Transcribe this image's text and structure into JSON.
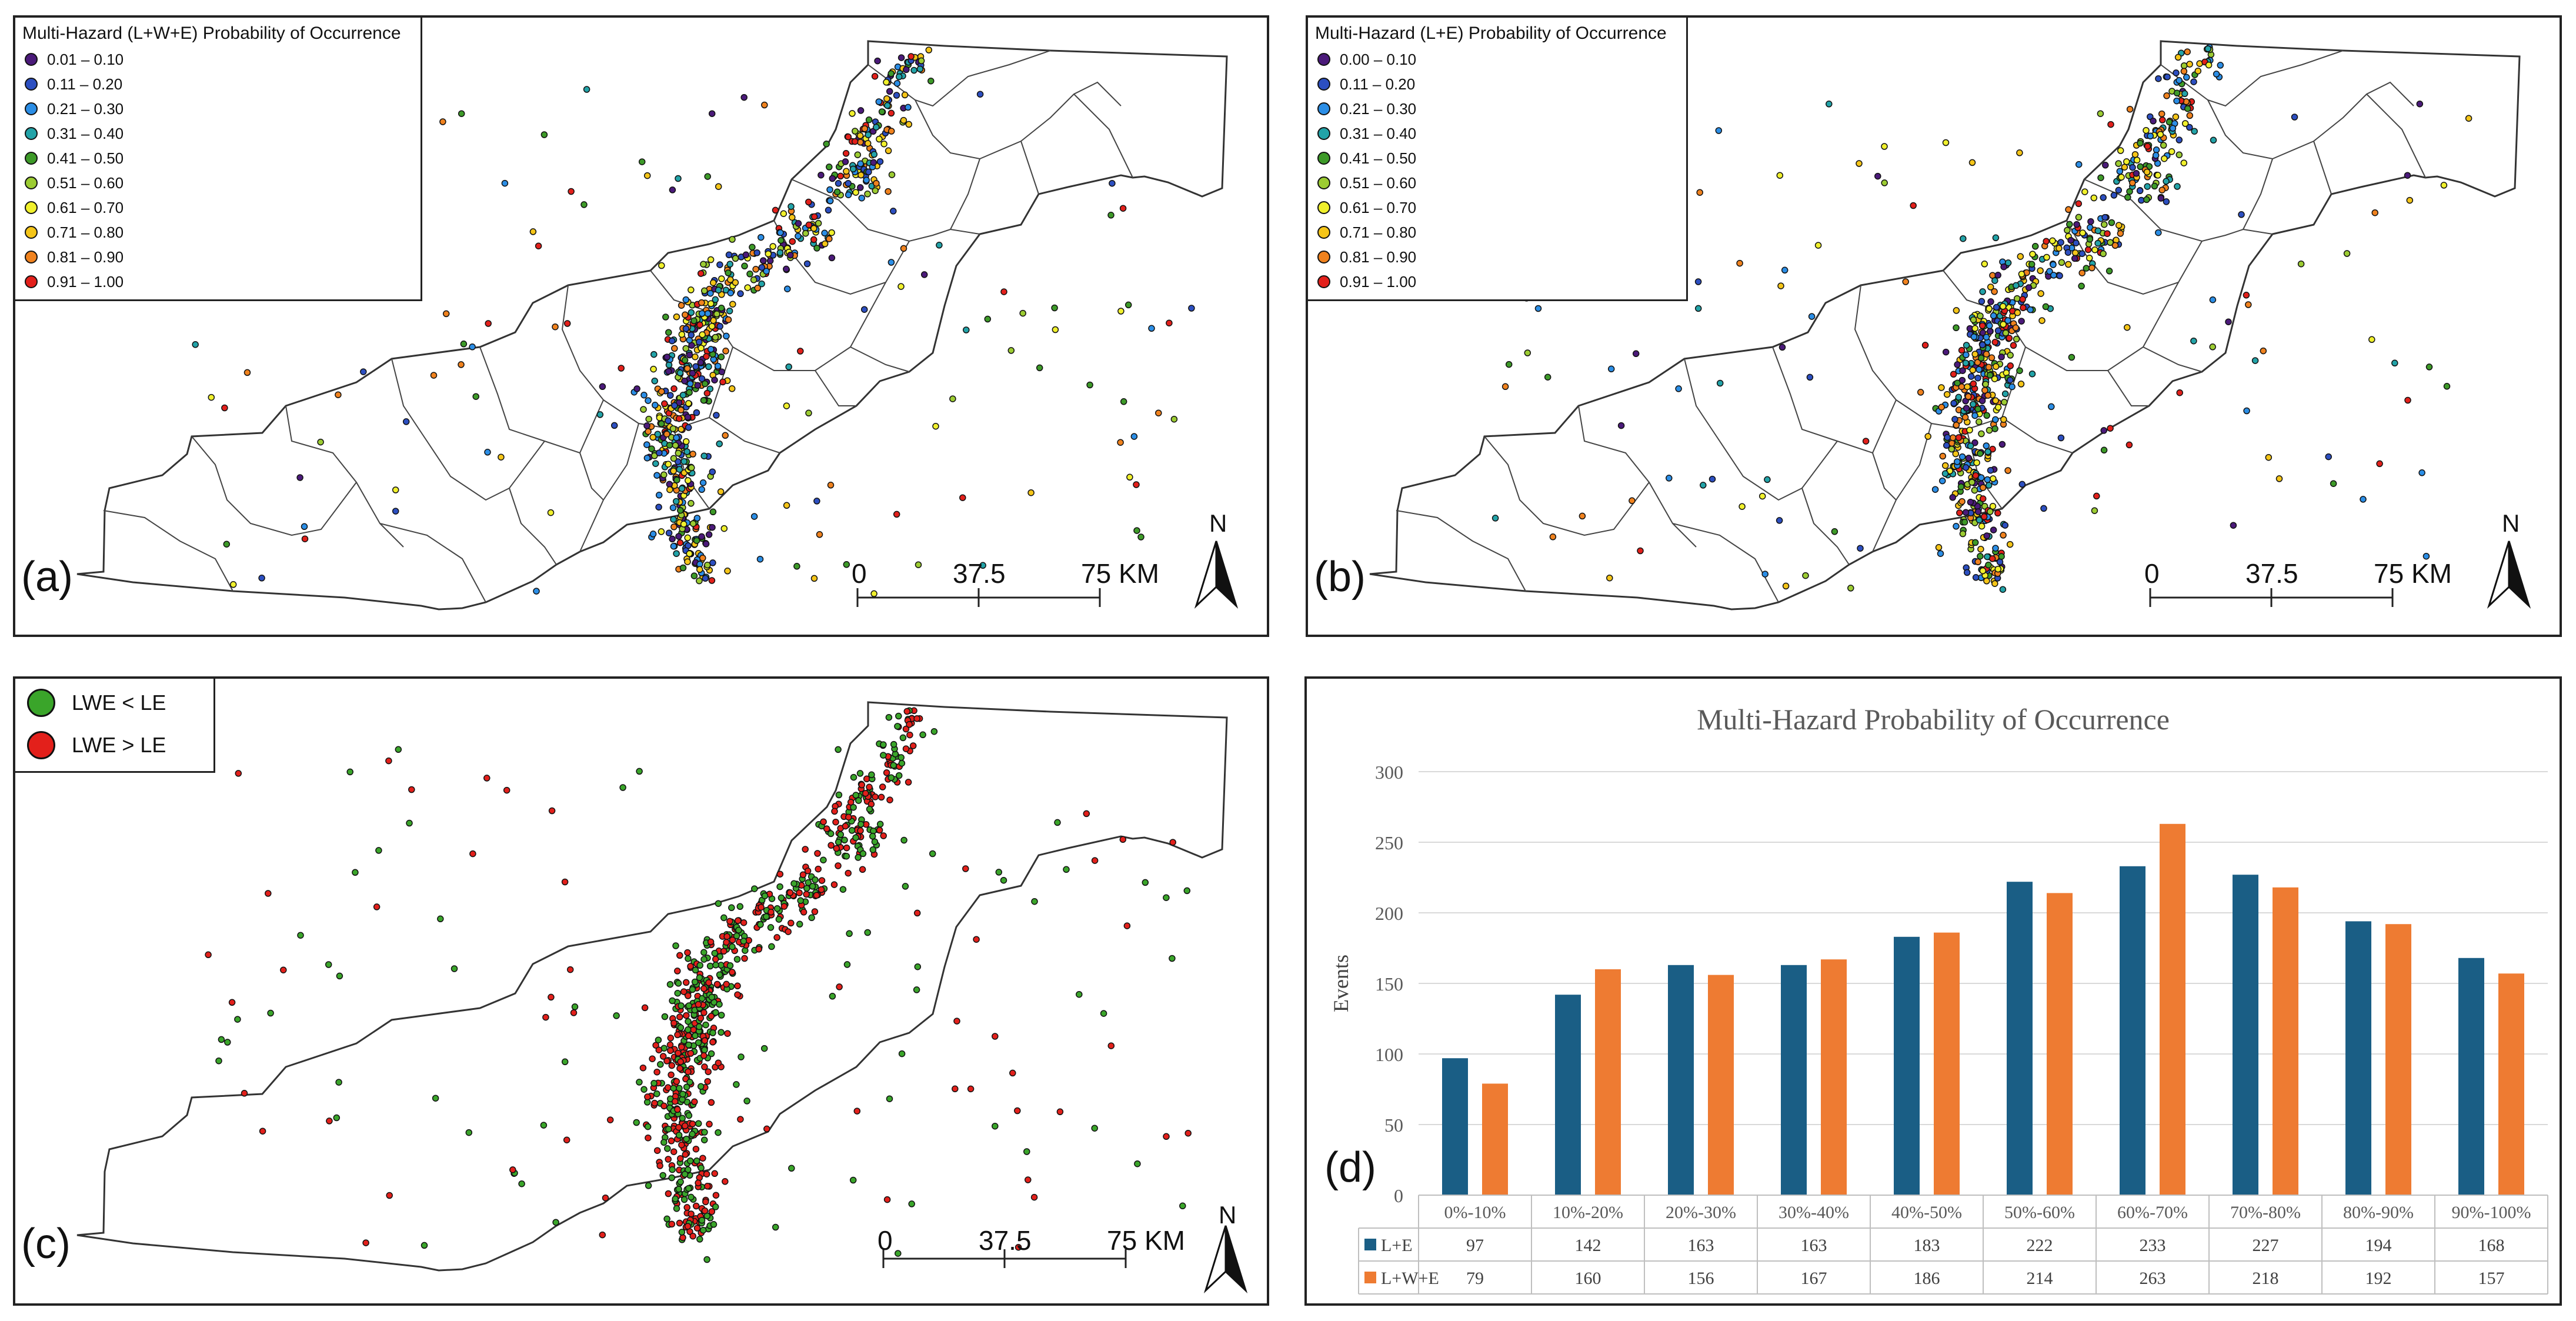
{
  "panel_a": {
    "label": "(a)",
    "legend_title": "Multi-Hazard (L+W+E) Probability of Occurrence",
    "classes": [
      {
        "range": "0.01 – 0.10",
        "color": "#4b1a7a"
      },
      {
        "range": "0.11 – 0.20",
        "color": "#2c4fc1"
      },
      {
        "range": "0.21 – 0.30",
        "color": "#2b8ee6"
      },
      {
        "range": "0.31 – 0.40",
        "color": "#22a3a8"
      },
      {
        "range": "0.41 – 0.50",
        "color": "#3d9a28"
      },
      {
        "range": "0.51 – 0.60",
        "color": "#9ccc32"
      },
      {
        "range": "0.61 – 0.70",
        "color": "#f0f02c"
      },
      {
        "range": "0.71 – 0.80",
        "color": "#f5c518"
      },
      {
        "range": "0.81 – 0.90",
        "color": "#f0821e"
      },
      {
        "range": "0.91 – 1.00",
        "color": "#e3201b"
      }
    ],
    "scale": {
      "zero": "0",
      "mid": "37.5",
      "end": "75 KM"
    },
    "north": "N"
  },
  "panel_b": {
    "label": "(b)",
    "legend_title": "Multi-Hazard (L+E) Probability of Occurrence",
    "classes": [
      {
        "range": "0.00 – 0.10",
        "color": "#4b1a7a"
      },
      {
        "range": "0.11 – 0.20",
        "color": "#2c4fc1"
      },
      {
        "range": "0.21 – 0.30",
        "color": "#2b8ee6"
      },
      {
        "range": "0.31 – 0.40",
        "color": "#22a3a8"
      },
      {
        "range": "0.41 – 0.50",
        "color": "#3d9a28"
      },
      {
        "range": "0.51 – 0.60",
        "color": "#9ccc32"
      },
      {
        "range": "0.61 – 0.70",
        "color": "#f0f02c"
      },
      {
        "range": "0.71 – 0.80",
        "color": "#f5c518"
      },
      {
        "range": "0.81 – 0.90",
        "color": "#f0821e"
      },
      {
        "range": "0.91 – 1.00",
        "color": "#e3201b"
      }
    ],
    "scale": {
      "zero": "0",
      "mid": "37.5",
      "end": "75 KM"
    },
    "north": "N"
  },
  "panel_c": {
    "label": "(c)",
    "legend": [
      {
        "label": "LWE < LE",
        "color": "#3aa52a"
      },
      {
        "label": "LWE > LE",
        "color": "#e3201b"
      }
    ],
    "scale": {
      "zero": "0",
      "mid": "37.5",
      "end": "75 KM"
    },
    "north": "N"
  },
  "panel_d": {
    "label": "(d)",
    "chart_data": {
      "type": "bar",
      "title": "Multi-Hazard Probability of Occurrence",
      "ylabel": "Events",
      "xlabel": "",
      "ylim": [
        0,
        300
      ],
      "yticks": [
        0,
        50,
        100,
        150,
        200,
        250,
        300
      ],
      "categories": [
        "0%-10%",
        "10%-20%",
        "20%-30%",
        "30%-40%",
        "40%-50%",
        "50%-60%",
        "60%-70%",
        "70%-80%",
        "80%-90%",
        "90%-100%"
      ],
      "series": [
        {
          "name": "L+E",
          "color": "#1a5e85",
          "values": [
            97,
            142,
            163,
            163,
            183,
            222,
            233,
            227,
            194,
            168
          ]
        },
        {
          "name": "L+W+E",
          "color": "#ee7b32",
          "values": [
            79,
            160,
            156,
            167,
            186,
            214,
            263,
            218,
            192,
            157
          ]
        }
      ],
      "grid": true,
      "legend": "data-table"
    }
  }
}
